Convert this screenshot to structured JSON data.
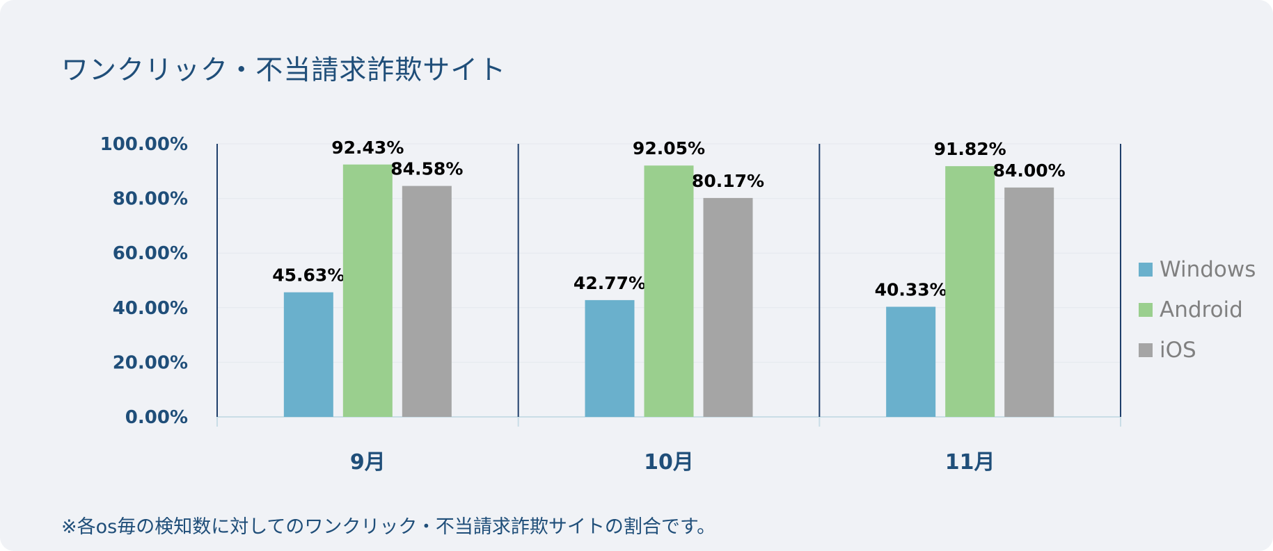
{
  "header": {
    "title": "ワンクリック・不当請求詐欺サイト"
  },
  "footer": {
    "note": "※各os毎の検知数に対してのワンクリック・不当請求詐欺サイトの割合です。"
  },
  "chart_data": {
    "type": "bar",
    "title": "ワンクリック・不当請求詐欺サイト",
    "xlabel": "",
    "ylabel": "",
    "categories": [
      "9月",
      "10月",
      "11月"
    ],
    "series": [
      {
        "name": "Windows",
        "color": "#6ab0cc",
        "values": [
          45.63,
          42.77,
          40.33
        ],
        "labels": [
          "45.63%",
          "42.77%",
          "40.33%"
        ]
      },
      {
        "name": "Android",
        "color": "#9acf8e",
        "values": [
          92.43,
          92.05,
          91.82
        ],
        "labels": [
          "92.43%",
          "92.05%",
          "91.82%"
        ]
      },
      {
        "name": "iOS",
        "color": "#a5a5a5",
        "values": [
          84.58,
          80.17,
          84.0
        ],
        "labels": [
          "84.58%",
          "80.17%",
          "84.00%"
        ]
      }
    ],
    "ylim": [
      0,
      100
    ],
    "yticks": [
      "0.00%",
      "20.00%",
      "40.00%",
      "60.00%",
      "80.00%",
      "100.00%"
    ],
    "legend": "right",
    "grid": true
  }
}
